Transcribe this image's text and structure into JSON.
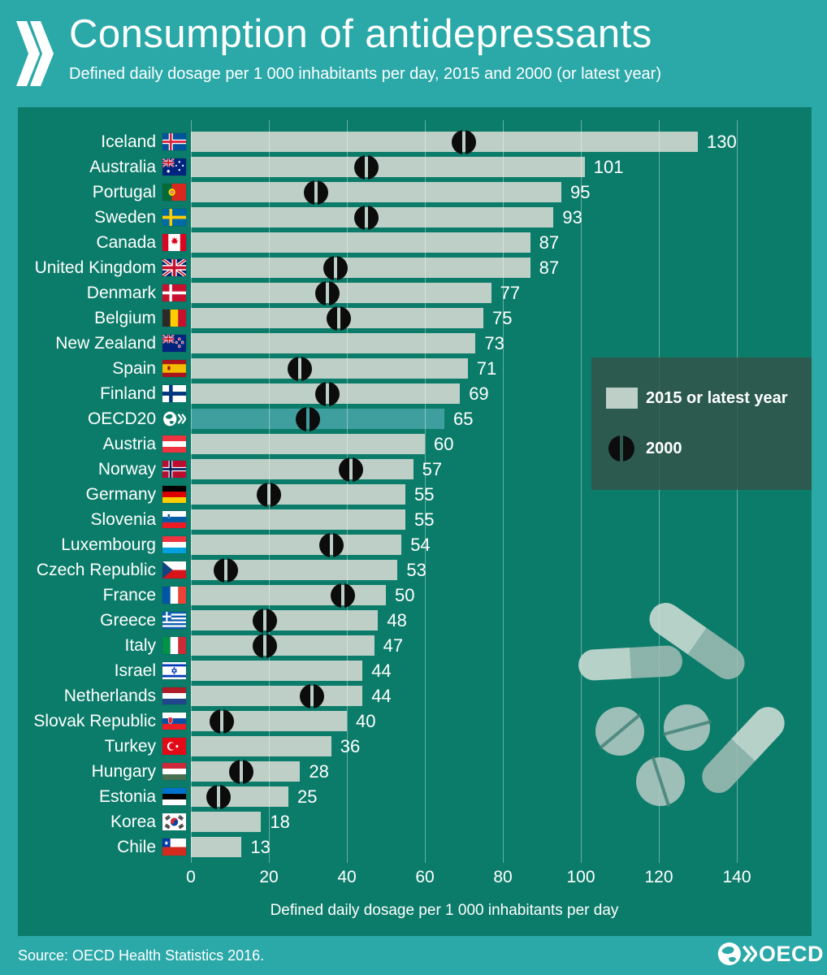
{
  "header": {
    "title": "Consumption of antidepressants",
    "subtitle": "Defined daily dosage per 1 000 inhabitants per day, 2015 and 2000 (or latest year)"
  },
  "legend": {
    "items": [
      {
        "icon": "bar-swatch",
        "label": "2015 or latest year"
      },
      {
        "icon": "pill-dot",
        "label": "2000"
      }
    ]
  },
  "chart_data": {
    "type": "bar",
    "orientation": "horizontal",
    "title": "Consumption of antidepressants",
    "subtitle": "Defined daily dosage per 1 000 inhabitants per day, 2015 and 2000 (or latest year)",
    "xlabel": "Defined daily dosage per 1 000 inhabitants per day",
    "xlim": [
      0,
      150
    ],
    "xticks": [
      0,
      20,
      40,
      60,
      80,
      100,
      120,
      140
    ],
    "grid": true,
    "legend_position": "right",
    "series": [
      {
        "name": "2015 or latest year",
        "style": "bar",
        "color": "#BDCFC6"
      },
      {
        "name": "2000",
        "style": "pill-dot",
        "color": "#0c0c0c"
      }
    ],
    "rows": [
      {
        "country": "Iceland",
        "flag": "iceland",
        "value_2015": 130,
        "value_2000": 70
      },
      {
        "country": "Australia",
        "flag": "australia",
        "value_2015": 101,
        "value_2000": 45
      },
      {
        "country": "Portugal",
        "flag": "portugal",
        "value_2015": 95,
        "value_2000": 32
      },
      {
        "country": "Sweden",
        "flag": "sweden",
        "value_2015": 93,
        "value_2000": 45
      },
      {
        "country": "Canada",
        "flag": "canada",
        "value_2015": 87,
        "value_2000": null
      },
      {
        "country": "United Kingdom",
        "flag": "uk",
        "value_2015": 87,
        "value_2000": 37
      },
      {
        "country": "Denmark",
        "flag": "denmark",
        "value_2015": 77,
        "value_2000": 35
      },
      {
        "country": "Belgium",
        "flag": "belgium",
        "value_2015": 75,
        "value_2000": 38
      },
      {
        "country": "New Zealand",
        "flag": "newzealand",
        "value_2015": 73,
        "value_2000": null
      },
      {
        "country": "Spain",
        "flag": "spain",
        "value_2015": 71,
        "value_2000": 28
      },
      {
        "country": "Finland",
        "flag": "finland",
        "value_2015": 69,
        "value_2000": 35
      },
      {
        "country": "OECD20",
        "flag": "oecd",
        "value_2015": 65,
        "value_2000": 30,
        "highlight": true
      },
      {
        "country": "Austria",
        "flag": "austria",
        "value_2015": 60,
        "value_2000": null
      },
      {
        "country": "Norway",
        "flag": "norway",
        "value_2015": 57,
        "value_2000": 41
      },
      {
        "country": "Germany",
        "flag": "germany",
        "value_2015": 55,
        "value_2000": 20
      },
      {
        "country": "Slovenia",
        "flag": "slovenia",
        "value_2015": 55,
        "value_2000": null
      },
      {
        "country": "Luxembourg",
        "flag": "luxembourg",
        "value_2015": 54,
        "value_2000": 36
      },
      {
        "country": "Czech Republic",
        "flag": "czech",
        "value_2015": 53,
        "value_2000": 9
      },
      {
        "country": "France",
        "flag": "france",
        "value_2015": 50,
        "value_2000": 39
      },
      {
        "country": "Greece",
        "flag": "greece",
        "value_2015": 48,
        "value_2000": 19
      },
      {
        "country": "Italy",
        "flag": "italy",
        "value_2015": 47,
        "value_2000": 19
      },
      {
        "country": "Israel",
        "flag": "israel",
        "value_2015": 44,
        "value_2000": null
      },
      {
        "country": "Netherlands",
        "flag": "netherlands",
        "value_2015": 44,
        "value_2000": 31
      },
      {
        "country": "Slovak Republic",
        "flag": "slovakia",
        "value_2015": 40,
        "value_2000": 8
      },
      {
        "country": "Turkey",
        "flag": "turkey",
        "value_2015": 36,
        "value_2000": null
      },
      {
        "country": "Hungary",
        "flag": "hungary",
        "value_2015": 28,
        "value_2000": 13
      },
      {
        "country": "Estonia",
        "flag": "estonia",
        "value_2015": 25,
        "value_2000": 7
      },
      {
        "country": "Korea",
        "flag": "korea",
        "value_2015": 18,
        "value_2000": null
      },
      {
        "country": "Chile",
        "flag": "chile",
        "value_2015": 13,
        "value_2000": null
      }
    ]
  },
  "illustration": {
    "items": [
      "capsule",
      "capsule",
      "capsule",
      "tablet",
      "tablet",
      "tablet"
    ]
  },
  "footer": {
    "source": "Source: OECD Health Statistics 2016.",
    "logo_text": "OECD"
  },
  "colors": {
    "outer_teal": "#2BA8A8",
    "panel_green": "#0C7C6A",
    "bar_fill": "#BDCFC6",
    "oecd_bar": "#3F9F9E",
    "legend_bg": "#2A5C50",
    "dot_black": "#0c0c0c",
    "text": "#FFFFFF"
  }
}
